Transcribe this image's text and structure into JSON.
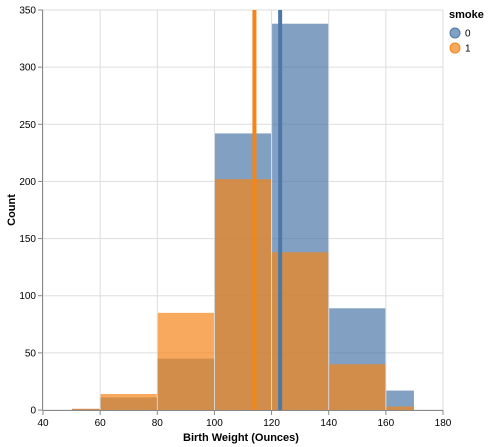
{
  "chart_data": {
    "type": "bar",
    "subtype": "overlaid-histogram-with-mean-rules",
    "xlabel": "Birth Weight (Ounces)",
    "ylabel": "Count",
    "xlim": [
      40,
      180
    ],
    "ylim": [
      0,
      350
    ],
    "x_ticks": [
      "40",
      "60",
      "80",
      "100",
      "120",
      "140",
      "160",
      "180"
    ],
    "y_ticks": [
      "0",
      "50",
      "100",
      "150",
      "200",
      "250",
      "300",
      "350"
    ],
    "grid": true,
    "legend": {
      "title": "smoke",
      "placement": "top-right",
      "items": [
        "0",
        "1"
      ]
    },
    "series": [
      {
        "name": "0",
        "color": "#4c78a8",
        "bins": [
          {
            "x0": 50,
            "x1": 60,
            "count": 1
          },
          {
            "x0": 60,
            "x1": 80,
            "count": 11
          },
          {
            "x0": 80,
            "x1": 100,
            "count": 45
          },
          {
            "x0": 100,
            "x1": 120,
            "count": 242
          },
          {
            "x0": 120,
            "x1": 140,
            "count": 338
          },
          {
            "x0": 140,
            "x1": 160,
            "count": 89
          },
          {
            "x0": 160,
            "x1": 170,
            "count": 17
          }
        ],
        "mean": 123
      },
      {
        "name": "1",
        "color": "#f58518",
        "bins": [
          {
            "x0": 50,
            "x1": 60,
            "count": 1
          },
          {
            "x0": 60,
            "x1": 80,
            "count": 14
          },
          {
            "x0": 80,
            "x1": 100,
            "count": 85
          },
          {
            "x0": 100,
            "x1": 120,
            "count": 202
          },
          {
            "x0": 120,
            "x1": 140,
            "count": 138
          },
          {
            "x0": 140,
            "x1": 160,
            "count": 40
          },
          {
            "x0": 160,
            "x1": 170,
            "count": 3
          }
        ],
        "mean": 114
      }
    ]
  }
}
